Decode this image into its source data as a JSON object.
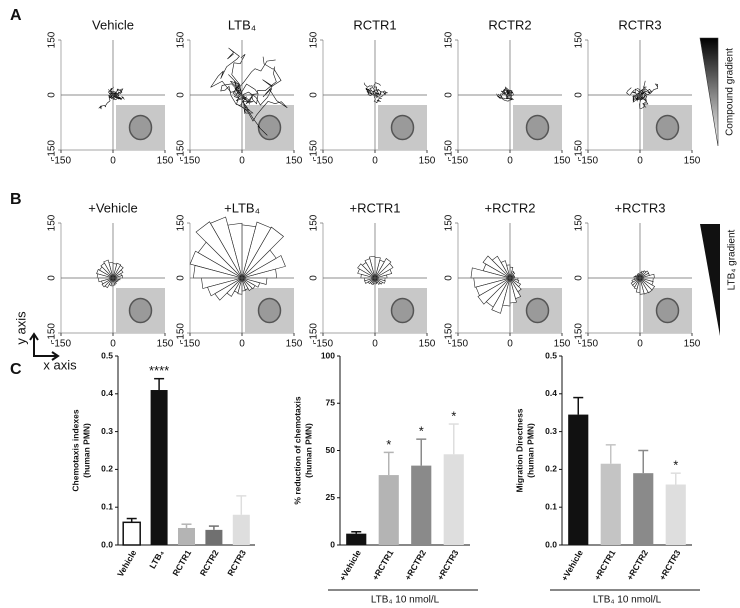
{
  "panel_labels": [
    "A",
    "B",
    "C"
  ],
  "panel_a": {
    "plots": [
      {
        "title": "Vehicle"
      },
      {
        "title": "LTB₄"
      },
      {
        "title": "RCTR1"
      },
      {
        "title": "RCTR2"
      },
      {
        "title": "RCTR3"
      }
    ],
    "xlim": [
      -150,
      150
    ],
    "ylim": [
      -150,
      150
    ],
    "xticks": [
      -150,
      0,
      150
    ],
    "yticks": [
      -150,
      0,
      150
    ],
    "gradient_label": "Compound gradient"
  },
  "panel_b": {
    "plots": [
      {
        "title": "+Vehicle"
      },
      {
        "title": "+LTB₄"
      },
      {
        "title": "+RCTR1"
      },
      {
        "title": "+RCTR2"
      },
      {
        "title": "+RCTR3"
      }
    ],
    "xlim": [
      -150,
      150
    ],
    "ylim": [
      -150,
      150
    ],
    "xticks": [
      -150,
      0,
      150
    ],
    "yticks": [
      -150,
      0,
      150
    ],
    "gradient_label": "LTB₄ gradient",
    "y_axis_label": "y axis",
    "x_axis_label": "x axis"
  },
  "chart_data": [
    {
      "type": "bar",
      "ylabel": [
        "Chemotaxis indexes",
        "(human PMN)"
      ],
      "categories": [
        "Vehicle",
        "LTB₄",
        "RCTR1",
        "RCTR2",
        "RCTR3"
      ],
      "values": [
        0.06,
        0.41,
        0.045,
        0.04,
        0.08
      ],
      "errors": [
        0.01,
        0.03,
        0.01,
        0.01,
        0.05
      ],
      "colors": [
        "#ffffff",
        "#111111",
        "#b4b4b4",
        "#707070",
        "#dedede"
      ],
      "significance": [
        null,
        "****",
        null,
        null,
        null
      ],
      "ylim": [
        0,
        0.5
      ],
      "yticks": [
        {
          "value": 0,
          "label": "0.0"
        },
        0.1,
        0.2,
        0.3,
        0.4,
        0.5
      ]
    },
    {
      "type": "bar",
      "ylabel": [
        "% reduction of chemotaxis",
        "(human PMN)"
      ],
      "categories": [
        "+Vehicle",
        "+RCTR1",
        "+RCTR2",
        "+RCTR3"
      ],
      "values": [
        6,
        37,
        42,
        48
      ],
      "errors": [
        1,
        12,
        14,
        16
      ],
      "colors": [
        "#111111",
        "#b4b4b4",
        "#8a8a8a",
        "#dedede"
      ],
      "significance": [
        null,
        "*",
        "*",
        "*"
      ],
      "xlabel": "LTB₄ 10 nmol/L",
      "ylim": [
        0,
        100
      ],
      "yticks": [
        0,
        25,
        50,
        75,
        100
      ]
    },
    {
      "type": "bar",
      "ylabel": [
        "Migration Directness",
        "(human PMN)"
      ],
      "categories": [
        "+Vehicle",
        "+RCTR1",
        "+RCTR2",
        "+RCTR3"
      ],
      "values": [
        0.345,
        0.215,
        0.19,
        0.16
      ],
      "errors": [
        0.045,
        0.05,
        0.06,
        0.03
      ],
      "colors": [
        "#111111",
        "#c4c4c4",
        "#8a8a8a",
        "#dedede"
      ],
      "significance": [
        null,
        null,
        null,
        "*"
      ],
      "xlabel": "LTB₄ 10 nmol/L",
      "ylim": [
        0,
        0.5
      ],
      "yticks": [
        {
          "value": 0,
          "label": "0.0"
        },
        0.1,
        0.2,
        0.3,
        0.4,
        0.5
      ]
    }
  ]
}
